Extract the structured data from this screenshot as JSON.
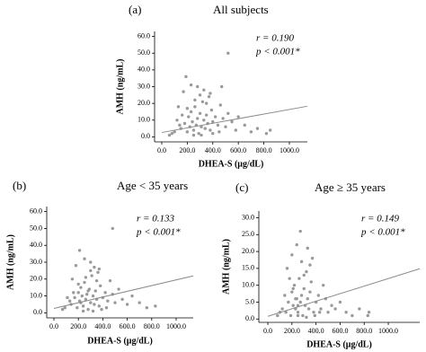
{
  "chart_data": [
    {
      "type": "scatter",
      "panel": "(a)",
      "title": "All subjects",
      "annotations": [
        "r = 0.190",
        "p < 0.001*"
      ],
      "x_label": "DHEA-S (μg/dL)",
      "y_label": "AMH (ng/mL)",
      "color": "#9a9a9a",
      "line_color": "#8a8a8a",
      "xlim": [
        -56,
        1141
      ],
      "ylim": [
        -3,
        63
      ],
      "xticks": [
        {
          "value": 0,
          "label": "0.0"
        },
        {
          "value": 200,
          "label": "200.0"
        },
        {
          "value": 400,
          "label": "400.0"
        },
        {
          "value": 600,
          "label": "600.0"
        },
        {
          "value": 800,
          "label": "800.0"
        },
        {
          "value": 1000,
          "label": "1000.0"
        }
      ],
      "yticks": [
        {
          "value": 0,
          "label": "0.0"
        },
        {
          "value": 10,
          "label": "10.0"
        },
        {
          "value": 20,
          "label": "20.0"
        },
        {
          "value": 30,
          "label": "30.0"
        },
        {
          "value": 40,
          "label": "40.0"
        },
        {
          "value": 50,
          "label": "50.0"
        },
        {
          "value": 60,
          "label": "60.0"
        }
      ],
      "x": [
        150,
        180,
        200,
        210,
        220,
        230,
        240,
        250,
        260,
        270,
        280,
        290,
        300,
        310,
        320,
        330,
        340,
        350,
        360,
        370,
        380,
        390,
        400,
        420,
        440,
        460,
        480,
        500,
        520,
        550,
        580,
        600,
        650,
        700,
        750,
        820,
        850,
        120,
        100,
        80,
        60,
        130,
        170,
        190,
        230,
        280,
        330,
        470,
        520,
        260,
        300,
        350,
        200,
        160,
        140,
        250,
        310,
        400,
        450,
        380
      ],
      "values": [
        5,
        8,
        3,
        12,
        6,
        15,
        9,
        4,
        18,
        7,
        11,
        2,
        14,
        6,
        21,
        10,
        5,
        13,
        8,
        24,
        4,
        16,
        9,
        12,
        7,
        19,
        11,
        6,
        14,
        9,
        4,
        12,
        7,
        3,
        5,
        2,
        4,
        10,
        3,
        2,
        1,
        18,
        27,
        36,
        31,
        30,
        28,
        30,
        50,
        22,
        25,
        20,
        17,
        13,
        7,
        1,
        1,
        2,
        3,
        26
      ],
      "trend_x": [
        0,
        1141
      ],
      "trend_y": [
        2.6,
        18.3
      ]
    },
    {
      "type": "scatter",
      "panel": "(b)",
      "title": "Age < 35 years",
      "annotations": [
        "r = 0.133",
        "p < 0.001*"
      ],
      "x_label": "DHEA-S (μg/dL)",
      "y_label": "AMH (ng/mL)",
      "color": "#9a9a9a",
      "line_color": "#8a8a8a",
      "xlim": [
        -59,
        1140
      ],
      "ylim": [
        -3,
        63
      ],
      "xticks": [
        {
          "value": 0,
          "label": "0.0"
        },
        {
          "value": 200,
          "label": "200.0"
        },
        {
          "value": 400,
          "label": "400.0"
        },
        {
          "value": 600,
          "label": "600.0"
        },
        {
          "value": 800,
          "label": "800.0"
        },
        {
          "value": 1000,
          "label": "1000.0"
        }
      ],
      "yticks": [
        {
          "value": 0,
          "label": "0.0"
        },
        {
          "value": 10,
          "label": "10.0"
        },
        {
          "value": 20,
          "label": "20.0"
        },
        {
          "value": 30,
          "label": "30.0"
        },
        {
          "value": 40,
          "label": "40.0"
        },
        {
          "value": 50,
          "label": "50.0"
        },
        {
          "value": 60,
          "label": "60.0"
        }
      ],
      "x": [
        140,
        170,
        190,
        200,
        210,
        220,
        230,
        240,
        250,
        260,
        270,
        280,
        290,
        300,
        310,
        320,
        330,
        340,
        350,
        360,
        370,
        380,
        400,
        420,
        440,
        460,
        480,
        500,
        530,
        560,
        600,
        640,
        700,
        760,
        830,
        110,
        90,
        70,
        150,
        180,
        210,
        250,
        300,
        330,
        480,
        260,
        300,
        350,
        200,
        160,
        130,
        240,
        320,
        390,
        430,
        370,
        280,
        220
      ],
      "values": [
        5,
        9,
        3,
        12,
        7,
        15,
        10,
        4,
        18,
        8,
        11,
        2,
        14,
        6,
        22,
        10,
        5,
        13,
        8,
        24,
        4,
        16,
        9,
        12,
        7,
        19,
        11,
        6,
        14,
        8,
        5,
        10,
        6,
        3,
        4,
        9,
        3,
        2,
        20,
        28,
        37,
        32,
        30,
        27,
        50,
        21,
        25,
        19,
        17,
        12,
        7,
        1,
        1,
        2,
        3,
        26,
        13,
        6
      ],
      "trend_x": [
        0,
        1140
      ],
      "trend_y": [
        2.6,
        21.9
      ]
    },
    {
      "type": "scatter",
      "panel": "(c)",
      "title": "Age ≥ 35 years",
      "annotations": [
        "r = 0.149",
        "p < 0.001*"
      ],
      "x_label": "DHEA-S (μg/dL)",
      "y_label": "AMH (ng/mL)",
      "color": "#9a9a9a",
      "line_color": "#8a8a8a",
      "xlim": [
        -75,
        1261
      ],
      "ylim": [
        -1,
        32
      ],
      "xticks": [
        {
          "value": 0,
          "label": "0.0"
        },
        {
          "value": 200,
          "label": "200.0"
        },
        {
          "value": 400,
          "label": "400.0"
        },
        {
          "value": 600,
          "label": "600.0"
        },
        {
          "value": 800,
          "label": "800.0"
        },
        {
          "value": 1000,
          "label": "1000.0"
        }
      ],
      "yticks": [
        {
          "value": 0,
          "label": "0.0"
        },
        {
          "value": 5,
          "label": "5.0"
        },
        {
          "value": 10,
          "label": "10.0"
        },
        {
          "value": 15,
          "label": "15.0"
        },
        {
          "value": 20,
          "label": "20.0"
        },
        {
          "value": 25,
          "label": "25.0"
        },
        {
          "value": 30,
          "label": "30.0"
        }
      ],
      "x": [
        120,
        150,
        170,
        190,
        200,
        210,
        220,
        230,
        240,
        250,
        260,
        270,
        280,
        290,
        300,
        310,
        320,
        330,
        340,
        350,
        360,
        380,
        400,
        420,
        440,
        460,
        480,
        500,
        530,
        560,
        600,
        650,
        700,
        760,
        830,
        840,
        100,
        80,
        160,
        200,
        240,
        280,
        330,
        270,
        300,
        350,
        210,
        180,
        140,
        250,
        320,
        390,
        430,
        370,
        250,
        230
      ],
      "values": [
        3,
        2,
        5,
        1,
        8,
        4,
        10,
        3,
        6,
        2,
        12,
        5,
        7,
        1,
        9,
        4,
        14,
        6,
        3,
        8,
        11,
        2,
        5,
        7,
        3,
        10,
        6,
        2,
        4,
        3,
        5,
        2,
        1,
        3,
        1,
        2,
        2,
        1,
        15,
        19,
        22,
        17,
        21,
        26,
        13,
        16,
        9,
        12,
        7,
        1,
        0.5,
        1,
        2,
        18,
        4,
        6
      ],
      "trend_x": [
        0,
        1261
      ],
      "trend_y": [
        0.8,
        14.9
      ]
    }
  ]
}
